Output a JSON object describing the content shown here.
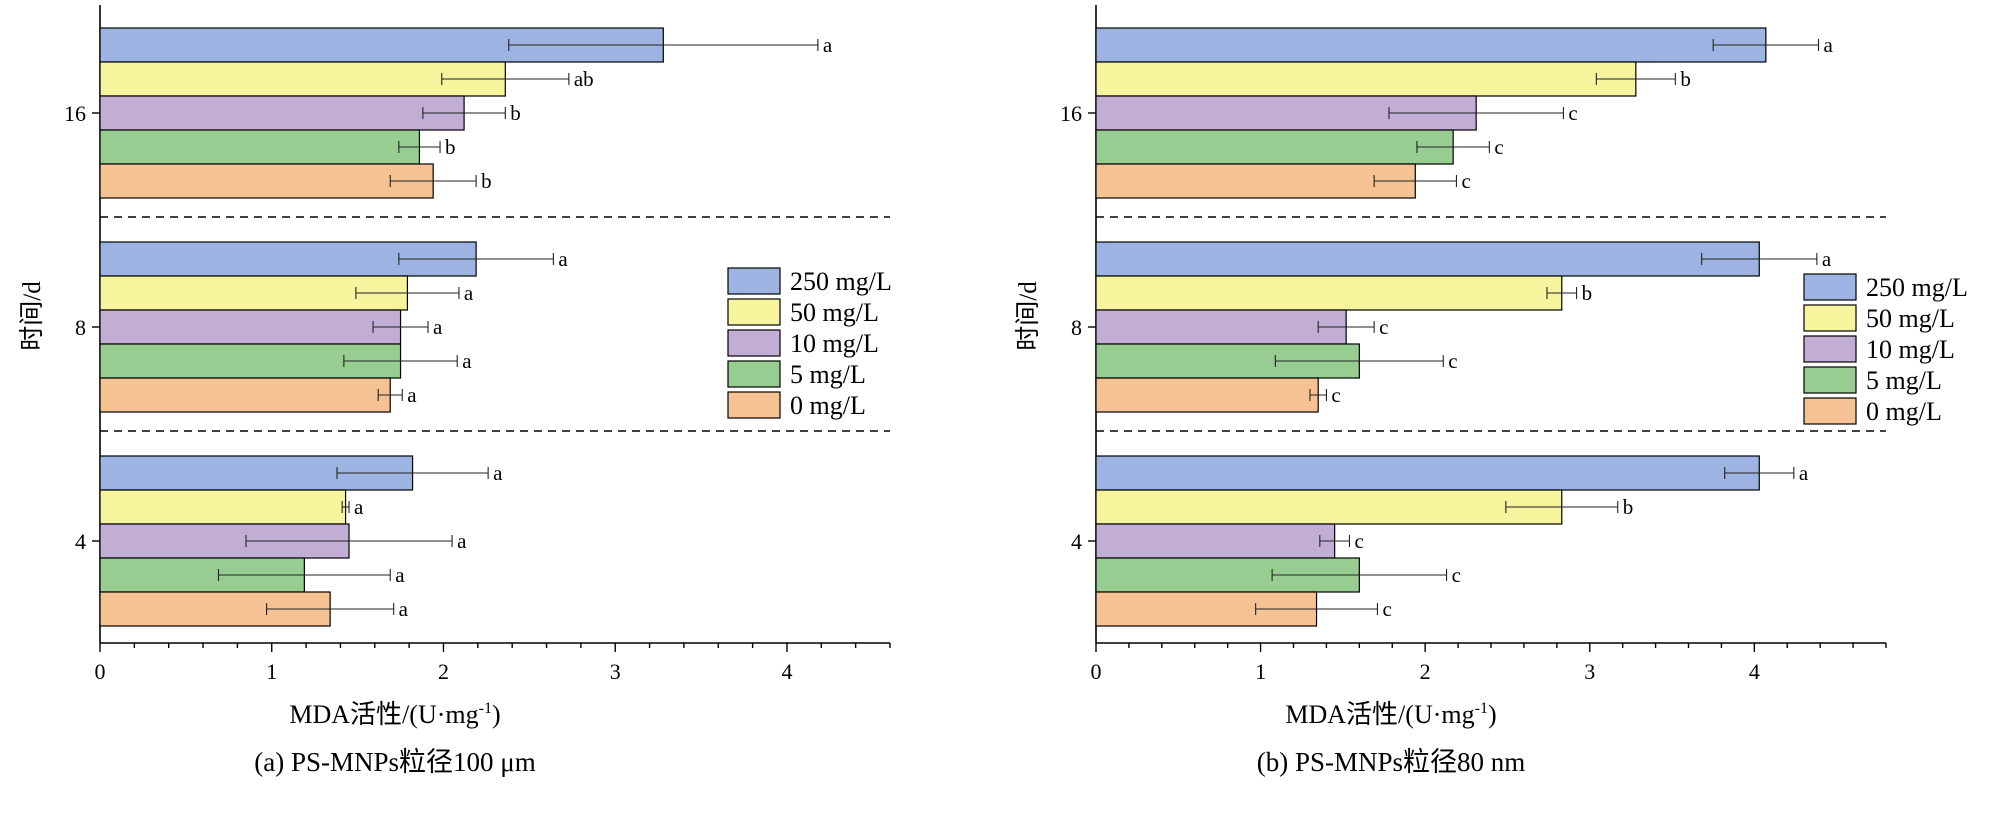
{
  "colors": {
    "250 mg/L": "#9DB4E2",
    "50 mg/L": "#F7F49E",
    "10 mg/L": "#C2AED5",
    "5 mg/L": "#98CD92",
    "0 mg/L": "#F5C294"
  },
  "chart_data": [
    {
      "type": "bar",
      "orientation": "horizontal",
      "caption": "(a) PS-MNPs粒径100 μm",
      "xlabel": "MDA活性/(U·mg",
      "xlabel_sup": "-1",
      "xlabel_close": ")",
      "ylabel": "时间/d",
      "xlim": [
        0,
        4.6
      ],
      "xticks": [
        0,
        1,
        2,
        3,
        4
      ],
      "categories": [
        "4",
        "8",
        "16"
      ],
      "legend": [
        "250 mg/L",
        "50 mg/L",
        "10 mg/L",
        "5 mg/L",
        "0 mg/L"
      ],
      "legend_placement": "right-center",
      "series": [
        {
          "name": "250 mg/L",
          "values": [
            1.82,
            2.19,
            3.28
          ],
          "errors": [
            0.44,
            0.45,
            0.9
          ],
          "labels": [
            "a",
            "a",
            "a"
          ]
        },
        {
          "name": "50 mg/L",
          "values": [
            1.43,
            1.79,
            2.36
          ],
          "errors": [
            0.02,
            0.3,
            0.37
          ],
          "labels": [
            "a",
            "a",
            "ab"
          ]
        },
        {
          "name": "10 mg/L",
          "values": [
            1.45,
            1.75,
            2.12
          ],
          "errors": [
            0.6,
            0.16,
            0.24
          ],
          "labels": [
            "a",
            "a",
            "b"
          ]
        },
        {
          "name": "5 mg/L",
          "values": [
            1.19,
            1.75,
            1.86
          ],
          "errors": [
            0.5,
            0.33,
            0.12
          ],
          "labels": [
            "a",
            "a",
            "b"
          ]
        },
        {
          "name": "0 mg/L",
          "values": [
            1.34,
            1.69,
            1.94
          ],
          "errors": [
            0.37,
            0.07,
            0.25
          ],
          "labels": [
            "a",
            "a",
            "b"
          ]
        }
      ]
    },
    {
      "type": "bar",
      "orientation": "horizontal",
      "caption": "(b) PS-MNPs粒径80 nm",
      "xlabel": "MDA活性/(U·mg",
      "xlabel_sup": "-1",
      "xlabel_close": ")",
      "ylabel": "时间/d",
      "xlim": [
        0,
        4.8
      ],
      "xticks": [
        0,
        1,
        2,
        3,
        4
      ],
      "categories": [
        "4",
        "8",
        "16"
      ],
      "legend": [
        "250 mg/L",
        "50 mg/L",
        "10 mg/L",
        "5 mg/L",
        "0 mg/L"
      ],
      "legend_placement": "right-center",
      "series": [
        {
          "name": "250 mg/L",
          "values": [
            4.03,
            4.03,
            4.07
          ],
          "errors": [
            0.21,
            0.35,
            0.32
          ],
          "labels": [
            "a",
            "a",
            "a"
          ]
        },
        {
          "name": "50 mg/L",
          "values": [
            2.83,
            2.83,
            3.28
          ],
          "errors": [
            0.34,
            0.09,
            0.24
          ],
          "labels": [
            "b",
            "b",
            "b"
          ]
        },
        {
          "name": "10 mg/L",
          "values": [
            1.45,
            1.52,
            2.31
          ],
          "errors": [
            0.09,
            0.17,
            0.53
          ],
          "labels": [
            "c",
            "c",
            "c"
          ]
        },
        {
          "name": "5 mg/L",
          "values": [
            1.6,
            1.6,
            2.17
          ],
          "errors": [
            0.53,
            0.51,
            0.22
          ],
          "labels": [
            "c",
            "c",
            "c"
          ]
        },
        {
          "name": "0 mg/L",
          "values": [
            1.34,
            1.35,
            1.94
          ],
          "errors": [
            0.37,
            0.05,
            0.25
          ],
          "labels": [
            "c",
            "c",
            "c"
          ]
        }
      ]
    }
  ]
}
